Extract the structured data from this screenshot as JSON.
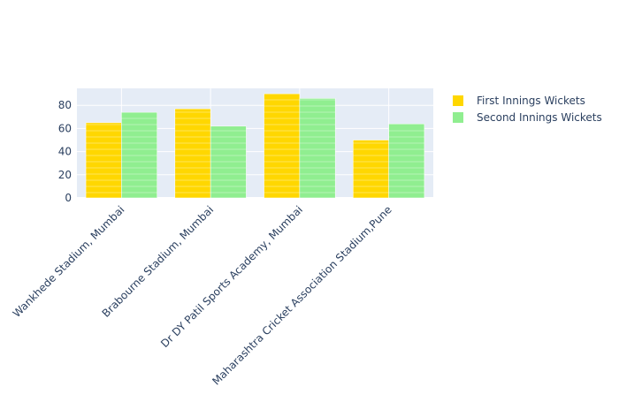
{
  "chart_data": {
    "type": "bar",
    "categories": [
      "Wankhede Stadium, Mumbai",
      "Brabourne Stadium, Mumbai",
      "Dr DY Patil Sports Academy, Mumbai",
      "Maharashtra Cricket Association Stadium,Pune"
    ],
    "series": [
      {
        "name": "First Innings Wickets",
        "values": [
          65,
          77,
          90,
          50
        ],
        "color": "#FFD700"
      },
      {
        "name": "Second Innings Wickets",
        "values": [
          74,
          62,
          86,
          64
        ],
        "color": "#90EE90"
      }
    ],
    "yticks": [
      0,
      20,
      40,
      60,
      80
    ],
    "ylim": [
      0,
      94.7
    ],
    "grid": true,
    "plot_bg": "#E5ECF6",
    "legend_position": "top-right"
  }
}
